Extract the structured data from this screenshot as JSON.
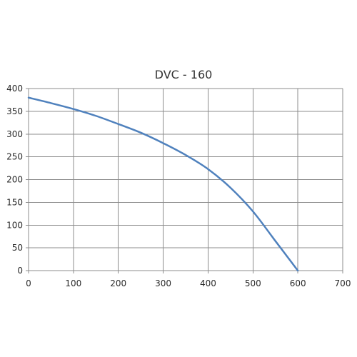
{
  "chart_data": {
    "type": "line",
    "title": "DVC - 160",
    "xlabel": "",
    "ylabel": "",
    "xlim": [
      0,
      700
    ],
    "ylim": [
      0,
      400
    ],
    "x_ticks": [
      "0",
      "100",
      "200",
      "300",
      "400",
      "500",
      "600",
      "700"
    ],
    "y_ticks": [
      "0",
      "50",
      "100",
      "150",
      "200",
      "250",
      "300",
      "350",
      "400"
    ],
    "grid": true,
    "legend": "none",
    "series": [
      {
        "color": "#4f81bd",
        "x": [
          0,
          50,
          100,
          150,
          200,
          250,
          300,
          350,
          400,
          450,
          500,
          550,
          600
        ],
        "y": [
          380,
          368,
          355,
          340,
          322,
          303,
          280,
          254,
          223,
          182,
          130,
          65,
          0
        ]
      }
    ]
  }
}
